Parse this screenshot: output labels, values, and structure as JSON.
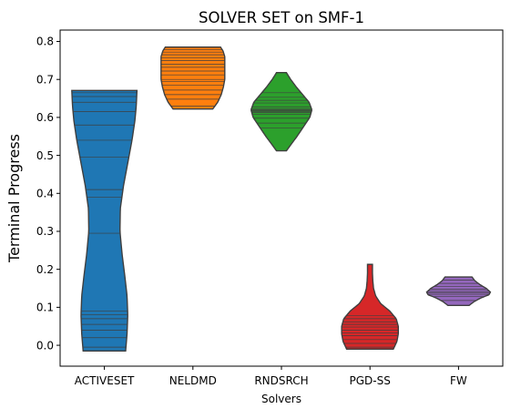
{
  "chart_data": {
    "type": "violin",
    "title": "SOLVER SET on SMF-1",
    "xlabel": "Solvers",
    "ylabel": "Terminal Progress",
    "ylim": [
      -0.055,
      0.83
    ],
    "yticks": [
      0.0,
      0.1,
      0.2,
      0.3,
      0.4,
      0.5,
      0.6,
      0.7,
      0.8
    ],
    "ytick_labels": [
      "0.0",
      "0.1",
      "0.2",
      "0.3",
      "0.4",
      "0.5",
      "0.6",
      "0.7",
      "0.8"
    ],
    "categories": [
      "ACTIVESET",
      "NELDMD",
      "RNDSRCH",
      "PGD-SS",
      "FW"
    ],
    "grid": false,
    "inner": "stick",
    "series": [
      {
        "color": "#1f77b4",
        "range": [
          -0.015,
          0.671
        ],
        "profile": [
          [
            -0.015,
            0.6
          ],
          [
            0.03,
            0.64
          ],
          [
            0.08,
            0.66
          ],
          [
            0.13,
            0.64
          ],
          [
            0.18,
            0.58
          ],
          [
            0.24,
            0.5
          ],
          [
            0.3,
            0.44
          ],
          [
            0.36,
            0.45
          ],
          [
            0.42,
            0.54
          ],
          [
            0.48,
            0.66
          ],
          [
            0.54,
            0.78
          ],
          [
            0.59,
            0.86
          ],
          [
            0.63,
            0.9
          ],
          [
            0.671,
            0.92
          ]
        ],
        "values": [
          -0.005,
          0.02,
          0.04,
          0.055,
          0.07,
          0.08,
          0.09,
          0.295,
          0.39,
          0.41,
          0.495,
          0.54,
          0.58,
          0.615,
          0.64,
          0.655,
          0.665
        ]
      },
      {
        "color": "#ff7f0e",
        "range": [
          0.622,
          0.785
        ],
        "profile": [
          [
            0.622,
            0.56
          ],
          [
            0.64,
            0.7
          ],
          [
            0.66,
            0.8
          ],
          [
            0.68,
            0.86
          ],
          [
            0.7,
            0.9
          ],
          [
            0.72,
            0.9
          ],
          [
            0.74,
            0.9
          ],
          [
            0.76,
            0.9
          ],
          [
            0.775,
            0.85
          ],
          [
            0.785,
            0.78
          ]
        ],
        "values": [
          0.63,
          0.648,
          0.66,
          0.672,
          0.685,
          0.695,
          0.7,
          0.712,
          0.722,
          0.732,
          0.74,
          0.75,
          0.757,
          0.765,
          0.772,
          0.778
        ]
      },
      {
        "color": "#2ca02c",
        "range": [
          0.512,
          0.718
        ],
        "profile": [
          [
            0.512,
            0.14
          ],
          [
            0.53,
            0.28
          ],
          [
            0.55,
            0.44
          ],
          [
            0.575,
            0.62
          ],
          [
            0.6,
            0.8
          ],
          [
            0.62,
            0.86
          ],
          [
            0.64,
            0.78
          ],
          [
            0.66,
            0.6
          ],
          [
            0.68,
            0.42
          ],
          [
            0.7,
            0.26
          ],
          [
            0.718,
            0.14
          ]
        ],
        "values": [
          0.572,
          0.585,
          0.598,
          0.608,
          0.613,
          0.616,
          0.618,
          0.62,
          0.623,
          0.628,
          0.638,
          0.645,
          0.653,
          0.665
        ]
      },
      {
        "color": "#d62728",
        "range": [
          -0.01,
          0.213
        ],
        "profile": [
          [
            -0.01,
            0.66
          ],
          [
            0.01,
            0.76
          ],
          [
            0.03,
            0.8
          ],
          [
            0.05,
            0.8
          ],
          [
            0.07,
            0.74
          ],
          [
            0.09,
            0.56
          ],
          [
            0.11,
            0.3
          ],
          [
            0.13,
            0.16
          ],
          [
            0.15,
            0.1
          ],
          [
            0.17,
            0.08
          ],
          [
            0.19,
            0.07
          ],
          [
            0.213,
            0.07
          ]
        ],
        "values": [
          -0.005,
          0.005,
          0.015,
          0.025,
          0.033,
          0.04,
          0.048,
          0.055,
          0.062,
          0.07,
          0.078
        ]
      },
      {
        "color": "#9467bd",
        "range": [
          0.105,
          0.18
        ],
        "profile": [
          [
            0.105,
            0.3
          ],
          [
            0.115,
            0.44
          ],
          [
            0.125,
            0.64
          ],
          [
            0.133,
            0.86
          ],
          [
            0.14,
            0.9
          ],
          [
            0.15,
            0.78
          ],
          [
            0.16,
            0.6
          ],
          [
            0.17,
            0.46
          ],
          [
            0.18,
            0.38
          ]
        ],
        "values": [
          0.118,
          0.128,
          0.134,
          0.138,
          0.142,
          0.148,
          0.155,
          0.163,
          0.172
        ]
      }
    ]
  }
}
